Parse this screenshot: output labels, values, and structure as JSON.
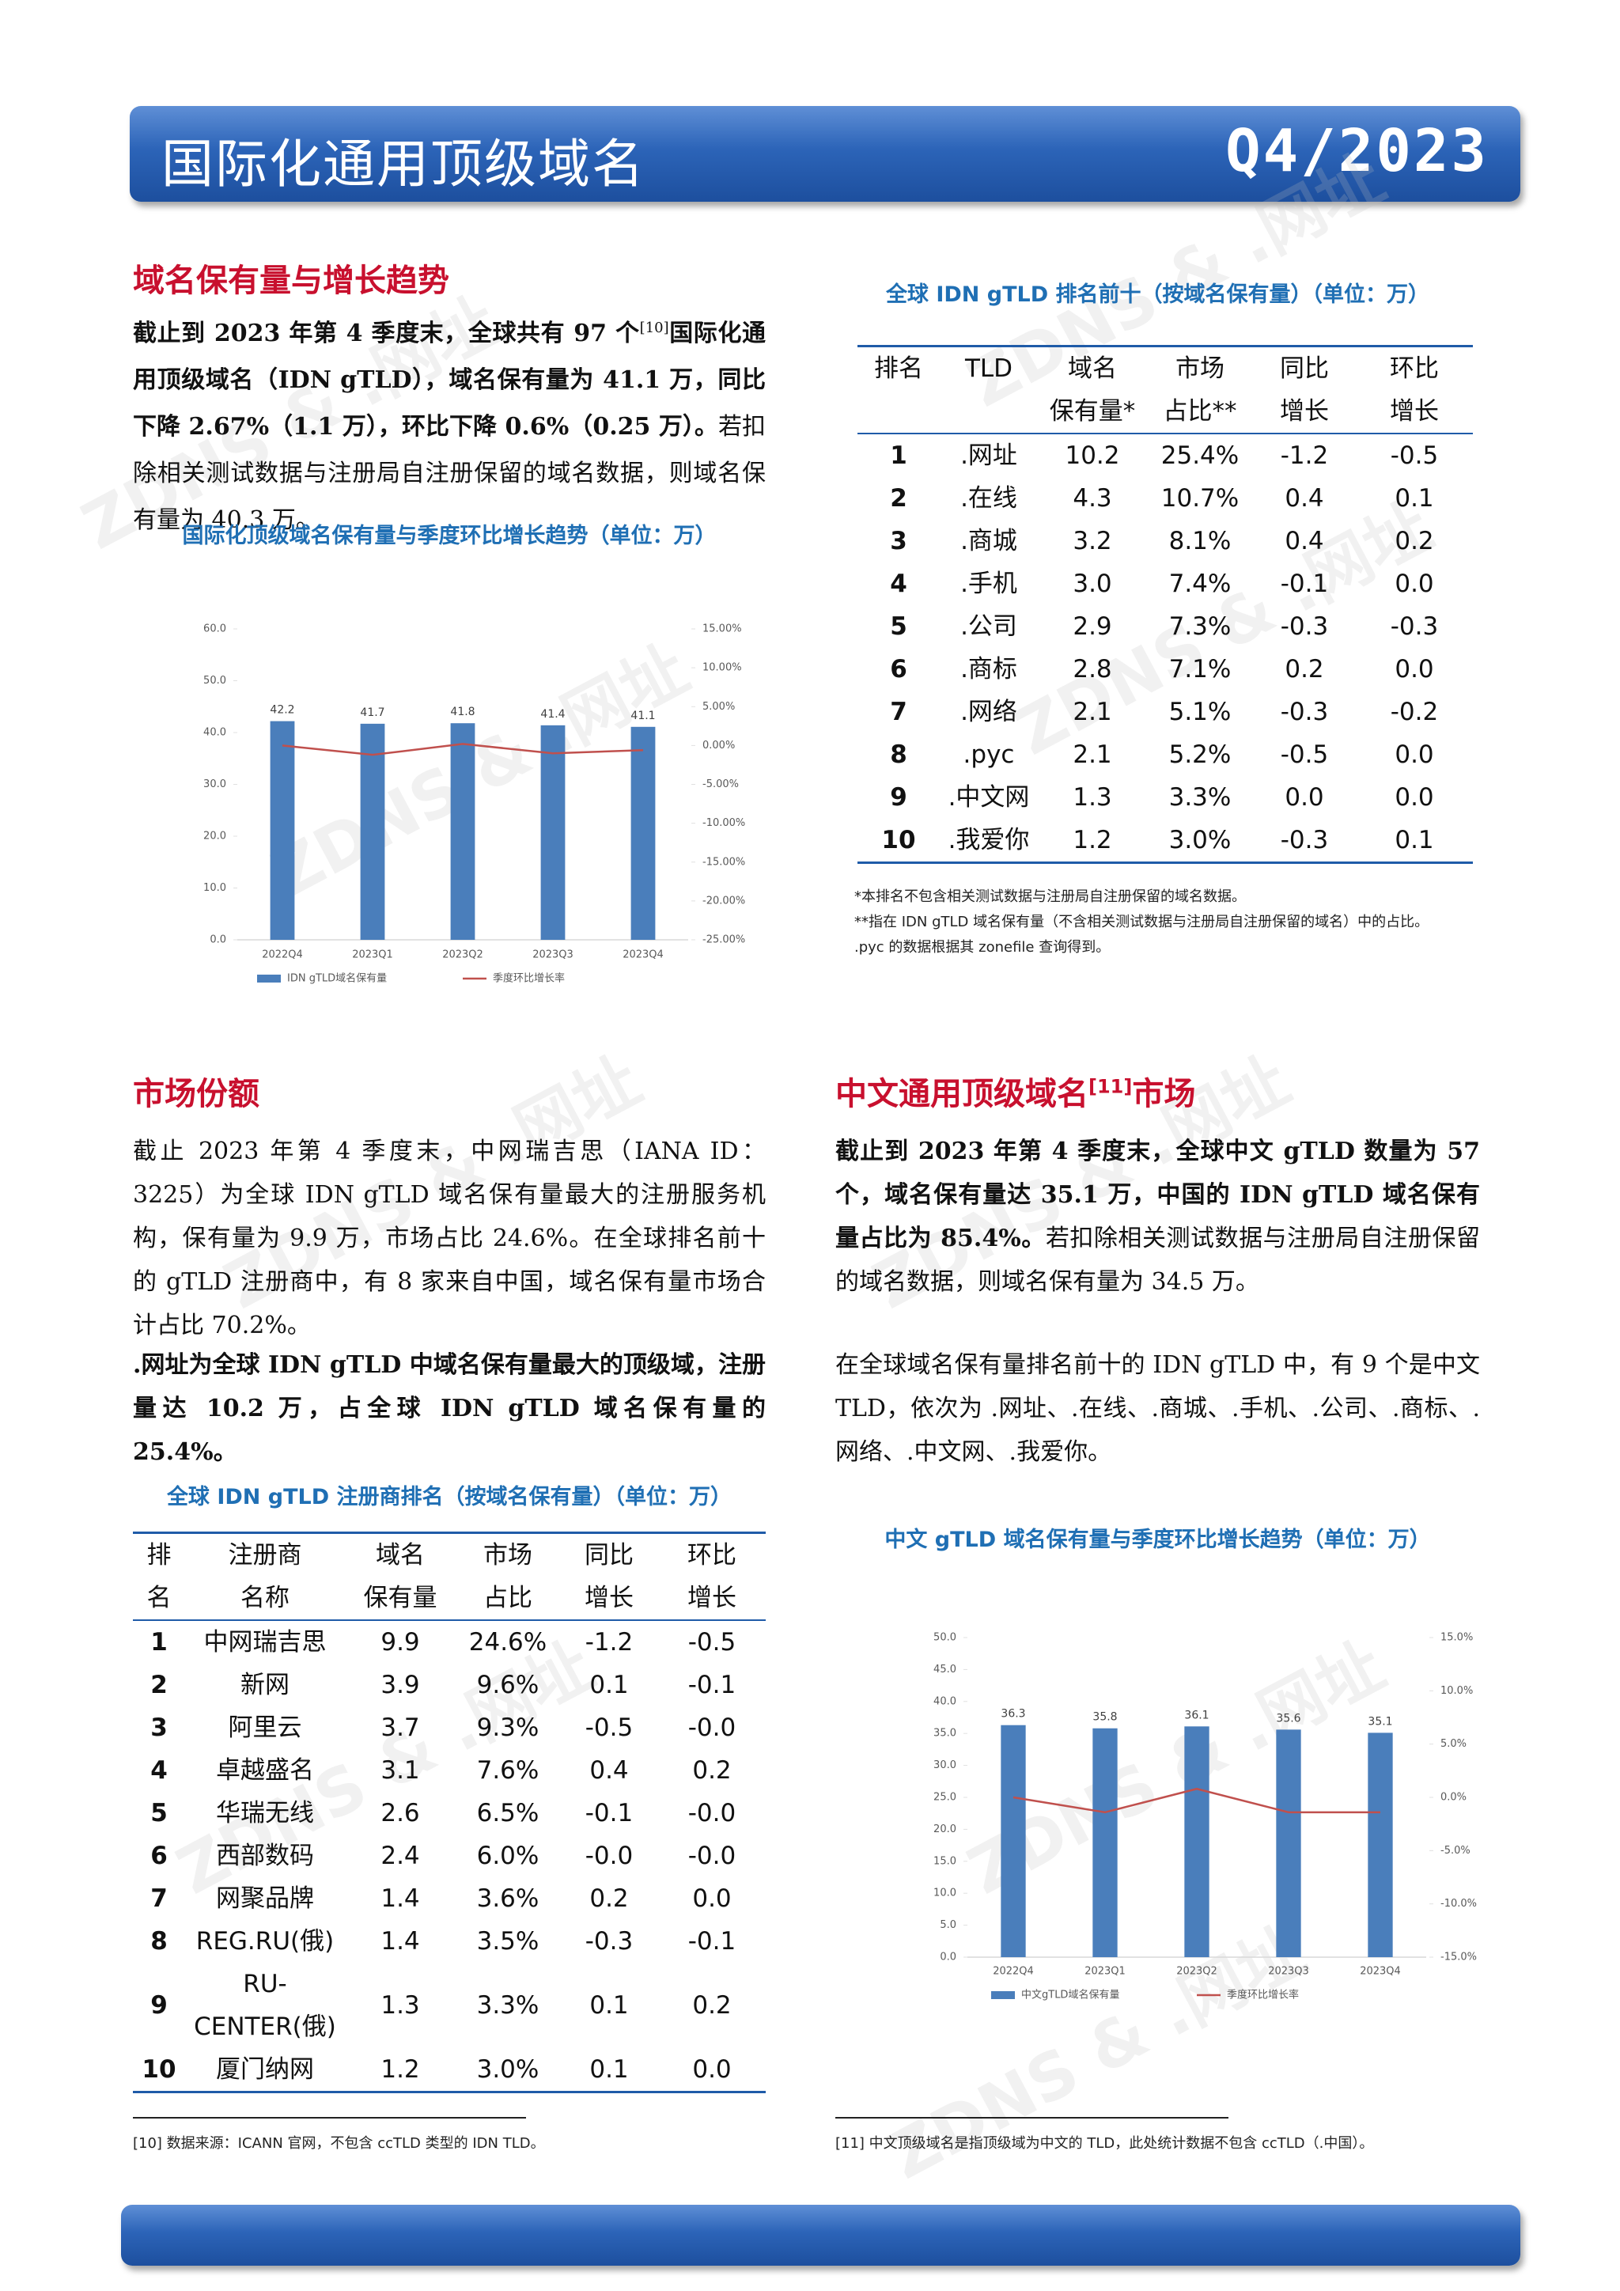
{
  "header": {
    "title": "国际化通用顶级域名",
    "period": "Q4/2023"
  },
  "watermark": "ZDNS & .网址",
  "sections": [
    {
      "heading": [
        {
          "text": "域名保有量与增长趋势"
        }
      ],
      "paragraphs": [
        [
          {
            "text": "截止到 2023 年第 4 季度末，全球共有 97 个",
            "bold": true
          },
          {
            "text": "[10]",
            "sup": true
          },
          {
            "text": "国际化通用顶级域名（IDN gTLD），域名保有量为 41.1 万，同比下降 2.67%（1.1 万），环比下降 0.6%（0.25 万）。",
            "bold": true
          },
          {
            "text": "若扣除相关测试数据与注册局自注册保留的域名数据，则域名保有量为 40.3 万。"
          }
        ]
      ]
    },
    {
      "heading": [
        {
          "text": "市场份额"
        }
      ],
      "paragraphs": [
        [
          {
            "text": "截止 2023 年第 4 季度末，中网瑞吉思（IANA ID：3225）为全球 IDN gTLD 域名保有量最大的注册服务机构，保有量为 9.9 万，市场占比 24.6%。在全球排名前十的 gTLD 注册商中，有 8 家来自中国，域名保有量市场合计占比 70.2%。"
          }
        ],
        [
          {
            "text": ".网址为全球 IDN gTLD 中域名保有量最大的顶级域，注册量达 10.2 万，占全球 IDN gTLD 域名保有量的 25.4%。",
            "bold": true
          }
        ]
      ]
    },
    {
      "heading": [
        {
          "text": "中文通用顶级域名"
        },
        {
          "text": "[11]",
          "sup": true
        },
        {
          "text": "市场"
        }
      ],
      "paragraphs": [
        [
          {
            "text": "截止到 2023 年第 4 季度末，全球中文 gTLD 数量为 57 个，域名保有量达 35.1 万，中国的 IDN gTLD 域名保有量占比为 85.4%。",
            "bold": true
          },
          {
            "text": "若扣除相关测试数据与注册局自注册保留的域名数据，则域名保有量为 34.5 万。"
          }
        ],
        [
          {
            "text": "在全球域名保有量排名前十的 IDN gTLD 中，有 9 个是中文 TLD，依次为 .网址、.在线、.商城、.手机、.公司、.商标、.网络、.中文网、.我爱你。"
          }
        ]
      ]
    }
  ],
  "tables": [
    {
      "title": "全球 IDN gTLD 排名前十（按域名保有量）（单位：万）",
      "header": [
        [
          "排名"
        ],
        [
          "TLD"
        ],
        [
          "域名",
          "保有量*"
        ],
        [
          "市场",
          "占比**"
        ],
        [
          "同比",
          "增长"
        ],
        [
          "环比",
          "增长"
        ]
      ],
      "rows": [
        [
          "1",
          ".网址",
          "10.2",
          "25.4%",
          "-1.2",
          "-0.5"
        ],
        [
          "2",
          ".在线",
          "4.3",
          "10.7%",
          "0.4",
          "0.1"
        ],
        [
          "3",
          ".商城",
          "3.2",
          "8.1%",
          "0.4",
          "0.2"
        ],
        [
          "4",
          ".手机",
          "3.0",
          "7.4%",
          "-0.1",
          "0.0"
        ],
        [
          "5",
          ".公司",
          "2.9",
          "7.3%",
          "-0.3",
          "-0.3"
        ],
        [
          "6",
          ".商标",
          "2.8",
          "7.1%",
          "0.2",
          "0.0"
        ],
        [
          "7",
          ".网络",
          "2.1",
          "5.1%",
          "-0.3",
          "-0.2"
        ],
        [
          "8",
          ".рус",
          "2.1",
          "5.2%",
          "-0.5",
          "0.0"
        ],
        [
          "9",
          ".中文网",
          "1.3",
          "3.3%",
          "0.0",
          "0.0"
        ],
        [
          "10",
          ".我爱你",
          "1.2",
          "3.0%",
          "-0.3",
          "0.1"
        ]
      ],
      "notes": [
        "*本排名不包含相关测试数据与注册局自注册保留的域名数据。",
        "**指在 IDN gTLD 域名保有量（不含相关测试数据与注册局自注册保留的域名）中的占比。",
        ".рус 的数据根据其 zonefile 查询得到。"
      ]
    },
    {
      "title": "全球 IDN gTLD 注册商排名（按域名保有量）（单位：万）",
      "header": [
        [
          "排",
          "名"
        ],
        [
          "注册商",
          "名称"
        ],
        [
          "域名",
          "保有量"
        ],
        [
          "市场",
          "占比"
        ],
        [
          "同比",
          "增长"
        ],
        [
          "环比",
          "增长"
        ]
      ],
      "rows": [
        [
          "1",
          "中网瑞吉思",
          "9.9",
          "24.6%",
          "-1.2",
          "-0.5"
        ],
        [
          "2",
          "新网",
          "3.9",
          "9.6%",
          "0.1",
          "-0.1"
        ],
        [
          "3",
          "阿里云",
          "3.7",
          "9.3%",
          "-0.5",
          "-0.0"
        ],
        [
          "4",
          "卓越盛名",
          "3.1",
          "7.6%",
          "0.4",
          "0.2"
        ],
        [
          "5",
          "华瑞无线",
          "2.6",
          "6.5%",
          "-0.1",
          "-0.0"
        ],
        [
          "6",
          "西部数码",
          "2.4",
          "6.0%",
          "-0.0",
          "-0.0"
        ],
        [
          "7",
          "网聚品牌",
          "1.4",
          "3.6%",
          "0.2",
          "0.0"
        ],
        [
          "8",
          "REG.RU(俄)",
          "1.4",
          "3.5%",
          "-0.3",
          "-0.1"
        ],
        [
          "9",
          "RU-CENTER(俄)",
          "1.3",
          "3.3%",
          "0.1",
          "0.2"
        ],
        [
          "10",
          "厦门纳网",
          "1.2",
          "3.0%",
          "0.1",
          "0.0"
        ]
      ]
    }
  ],
  "footnotes": [
    "[10] 数据来源：ICANN 官网，不包含 ccTLD 类型的 IDN TLD。",
    "[11] 中文顶级域名是指顶级域为中文的 TLD，此处统计数据不包含 ccTLD（.中国）。"
  ],
  "chart_data": [
    {
      "type": "bar",
      "title": "国际化顶级域名保有量与季度环比增长趋势（单位：万）",
      "categories": [
        "2022Q4",
        "2023Q1",
        "2023Q2",
        "2023Q3",
        "2023Q4"
      ],
      "series": [
        {
          "name": "IDN gTLD域名保有量",
          "color": "#4a7ebb",
          "type": "bar",
          "values": [
            42.2,
            41.7,
            41.8,
            41.4,
            41.1
          ]
        },
        {
          "name": "季度环比增长率",
          "color": "#c0504d",
          "type": "line",
          "axis": "y2",
          "values": [
            0.0,
            -1.2,
            0.2,
            -1.0,
            -0.6
          ]
        }
      ],
      "ylim": [
        0,
        60
      ],
      "yticks": [
        {
          "value": 0,
          "label": "0.0"
        },
        {
          "value": 10,
          "label": "10.0"
        },
        {
          "value": 20,
          "label": "20.0"
        },
        {
          "value": 30,
          "label": "30.0"
        },
        {
          "value": 40,
          "label": "40.0"
        },
        {
          "value": 50,
          "label": "50.0"
        },
        {
          "value": 60,
          "label": "60.0"
        }
      ],
      "y2lim": [
        -25,
        15
      ],
      "y2ticks": [
        {
          "value": -25,
          "label": "-25.00%"
        },
        {
          "value": -20,
          "label": "-20.00%"
        },
        {
          "value": -15,
          "label": "-15.00%"
        },
        {
          "value": -10,
          "label": "-10.00%"
        },
        {
          "value": -5,
          "label": "-5.00%"
        },
        {
          "value": 0,
          "label": "0.00%"
        },
        {
          "value": 5,
          "label": "5.00%"
        },
        {
          "value": 10,
          "label": "10.00%"
        },
        {
          "value": 15,
          "label": "15.00%"
        }
      ],
      "data_labels": true,
      "grid": false,
      "legend": "bottom"
    },
    {
      "type": "bar",
      "title": "中文 gTLD 域名保有量与季度环比增长趋势（单位：万）",
      "categories": [
        "2022Q4",
        "2023Q1",
        "2023Q2",
        "2023Q3",
        "2023Q4"
      ],
      "series": [
        {
          "name": "中文gTLD域名保有量",
          "color": "#4a7ebb",
          "type": "bar",
          "values": [
            36.3,
            35.8,
            36.1,
            35.6,
            35.1
          ]
        },
        {
          "name": "季度环比增长率",
          "color": "#c0504d",
          "type": "line",
          "axis": "y2",
          "values": [
            0.0,
            -1.4,
            0.8,
            -1.4,
            -1.4
          ]
        }
      ],
      "ylim": [
        0,
        50
      ],
      "yticks": [
        {
          "value": 0,
          "label": "0.0"
        },
        {
          "value": 5,
          "label": "5.0"
        },
        {
          "value": 10,
          "label": "10.0"
        },
        {
          "value": 15,
          "label": "15.0"
        },
        {
          "value": 20,
          "label": "20.0"
        },
        {
          "value": 25,
          "label": "25.0"
        },
        {
          "value": 30,
          "label": "30.0"
        },
        {
          "value": 35,
          "label": "35.0"
        },
        {
          "value": 40,
          "label": "40.0"
        },
        {
          "value": 45,
          "label": "45.0"
        },
        {
          "value": 50,
          "label": "50.0"
        }
      ],
      "y2lim": [
        -15,
        15
      ],
      "y2ticks": [
        {
          "value": -15,
          "label": "-15.0%"
        },
        {
          "value": -10,
          "label": "-10.0%"
        },
        {
          "value": -5,
          "label": "-5.0%"
        },
        {
          "value": 0,
          "label": "0.0%"
        },
        {
          "value": 5,
          "label": "5.0%"
        },
        {
          "value": 10,
          "label": "10.0%"
        },
        {
          "value": 15,
          "label": "15.0%"
        }
      ],
      "data_labels": true,
      "grid": false,
      "legend": "bottom"
    }
  ]
}
